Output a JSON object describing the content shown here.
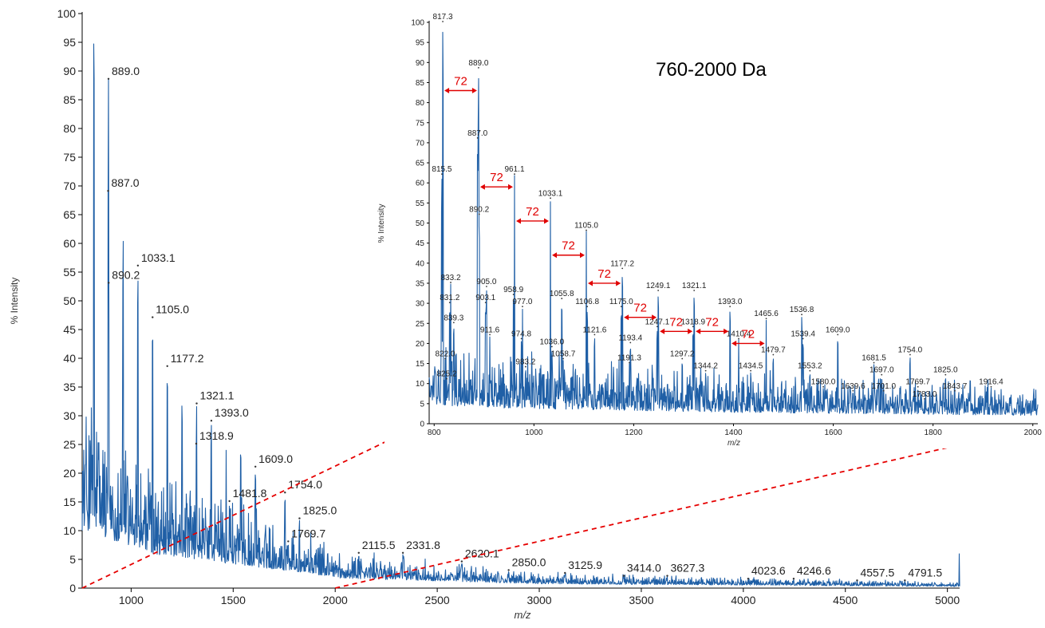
{
  "chart_data": [
    {
      "type": "line",
      "xlabel": "m/z",
      "ylabel": "% Intensity",
      "xlim": [
        760,
        5060
      ],
      "ylim": [
        0,
        100
      ],
      "xticks": [
        1000,
        1500,
        2000,
        2500,
        3000,
        3500,
        4000,
        4500,
        5000
      ],
      "yticks": [
        0,
        5,
        10,
        15,
        20,
        25,
        30,
        35,
        40,
        45,
        50,
        55,
        60,
        65,
        70,
        75,
        80,
        85,
        90,
        95,
        100
      ],
      "color": "#1f5fa6",
      "labeled_peaks": [
        {
          "x": 817.3,
          "y": 100,
          "label": ""
        },
        {
          "x": 889.0,
          "y": 88.5,
          "label": "889.0"
        },
        {
          "x": 887.0,
          "y": 69,
          "label": "887.0"
        },
        {
          "x": 961.1,
          "y": 61.5,
          "label": ""
        },
        {
          "x": 1033.1,
          "y": 56,
          "label": "1033.1"
        },
        {
          "x": 890.2,
          "y": 53,
          "label": "890.2"
        },
        {
          "x": 1105.0,
          "y": 47,
          "label": "1105.0"
        },
        {
          "x": 1177.2,
          "y": 38.5,
          "label": "1177.2"
        },
        {
          "x": 1249.1,
          "y": 33,
          "label": ""
        },
        {
          "x": 1321.1,
          "y": 32,
          "label": "1321.1"
        },
        {
          "x": 1393.0,
          "y": 29,
          "label": "1393.0"
        },
        {
          "x": 1318.9,
          "y": 25,
          "label": "1318.9"
        },
        {
          "x": 1465.6,
          "y": 24,
          "label": ""
        },
        {
          "x": 1536.8,
          "y": 25,
          "label": ""
        },
        {
          "x": 1609.0,
          "y": 21,
          "label": "1609.0"
        },
        {
          "x": 1481.8,
          "y": 15,
          "label": "1481.8"
        },
        {
          "x": 1754.0,
          "y": 16.5,
          "label": "1754.0"
        },
        {
          "x": 1825.0,
          "y": 12,
          "label": "1825.0"
        },
        {
          "x": 1769.7,
          "y": 8,
          "label": "1769.7"
        },
        {
          "x": 2115.5,
          "y": 6,
          "label": "2115.5"
        },
        {
          "x": 2331.8,
          "y": 6,
          "label": "2331.8"
        },
        {
          "x": 2620.1,
          "y": 4.5,
          "label": "2620.1"
        },
        {
          "x": 2850.0,
          "y": 3,
          "label": "2850.0"
        },
        {
          "x": 3125.9,
          "y": 2.5,
          "label": "3125.9"
        },
        {
          "x": 3414.0,
          "y": 2,
          "label": "3414.0"
        },
        {
          "x": 3627.3,
          "y": 2,
          "label": "3627.3"
        },
        {
          "x": 4023.6,
          "y": 1.5,
          "label": "4023.6"
        },
        {
          "x": 4246.6,
          "y": 1.5,
          "label": "4246.6"
        },
        {
          "x": 4557.5,
          "y": 1.2,
          "label": "4557.5"
        },
        {
          "x": 4791.5,
          "y": 1.2,
          "label": "4791.5"
        },
        {
          "x": 5058,
          "y": 6,
          "label": ""
        }
      ]
    },
    {
      "type": "line",
      "title": "760-2000 Da",
      "xlabel": "m/z",
      "ylabel": "% Intensity",
      "xlim": [
        790,
        2010
      ],
      "ylim": [
        0,
        100
      ],
      "xticks": [
        800,
        1000,
        1200,
        1400,
        1600,
        1800,
        2000
      ],
      "yticks": [
        0,
        5,
        10,
        15,
        20,
        25,
        30,
        35,
        40,
        45,
        50,
        55,
        60,
        65,
        70,
        75,
        80,
        85,
        90,
        95,
        100
      ],
      "color": "#1f5fa6",
      "labeled_peaks": [
        {
          "x": 817.3,
          "y": 100,
          "label": "817.3"
        },
        {
          "x": 815.5,
          "y": 62,
          "label": "815.5"
        },
        {
          "x": 822.0,
          "y": 16,
          "label": "822.0"
        },
        {
          "x": 825.2,
          "y": 11,
          "label": "825.2"
        },
        {
          "x": 833.2,
          "y": 35,
          "label": "833.2"
        },
        {
          "x": 831.2,
          "y": 30,
          "label": "831.2"
        },
        {
          "x": 839.3,
          "y": 25,
          "label": "839.3"
        },
        {
          "x": 889.0,
          "y": 88.5,
          "label": "889.0"
        },
        {
          "x": 887.0,
          "y": 71,
          "label": "887.0"
        },
        {
          "x": 890.2,
          "y": 52,
          "label": "890.2"
        },
        {
          "x": 905.0,
          "y": 34,
          "label": "905.0"
        },
        {
          "x": 903.1,
          "y": 30,
          "label": "903.1"
        },
        {
          "x": 911.6,
          "y": 22,
          "label": "911.6"
        },
        {
          "x": 961.1,
          "y": 62,
          "label": "961.1"
        },
        {
          "x": 958.9,
          "y": 32,
          "label": "958.9"
        },
        {
          "x": 977.0,
          "y": 29,
          "label": "977.0"
        },
        {
          "x": 974.8,
          "y": 21,
          "label": "974.8"
        },
        {
          "x": 983.2,
          "y": 14,
          "label": "983.2"
        },
        {
          "x": 1033.1,
          "y": 56,
          "label": "1033.1"
        },
        {
          "x": 1036.0,
          "y": 19,
          "label": "1036.0"
        },
        {
          "x": 1058.7,
          "y": 16,
          "label": "1058.7"
        },
        {
          "x": 1055.8,
          "y": 31,
          "label": "1055.8"
        },
        {
          "x": 1105.0,
          "y": 48,
          "label": "1105.0"
        },
        {
          "x": 1106.8,
          "y": 29,
          "label": "1106.8"
        },
        {
          "x": 1121.6,
          "y": 22,
          "label": "1121.6"
        },
        {
          "x": 1177.2,
          "y": 38.5,
          "label": "1177.2"
        },
        {
          "x": 1175.0,
          "y": 29,
          "label": "1175.0"
        },
        {
          "x": 1193.4,
          "y": 20,
          "label": "1193.4"
        },
        {
          "x": 1191.3,
          "y": 15,
          "label": "1191.3"
        },
        {
          "x": 1249.1,
          "y": 33,
          "label": "1249.1"
        },
        {
          "x": 1247.1,
          "y": 24,
          "label": "1247.1"
        },
        {
          "x": 1297.2,
          "y": 16,
          "label": "1297.2"
        },
        {
          "x": 1321.1,
          "y": 33,
          "label": "1321.1"
        },
        {
          "x": 1318.9,
          "y": 24,
          "label": "1318.9"
        },
        {
          "x": 1344.2,
          "y": 13,
          "label": "1344.2"
        },
        {
          "x": 1393.0,
          "y": 29,
          "label": "1393.0"
        },
        {
          "x": 1410.4,
          "y": 21,
          "label": "1410.4"
        },
        {
          "x": 1434.5,
          "y": 13,
          "label": "1434.5"
        },
        {
          "x": 1465.6,
          "y": 26,
          "label": "1465.6"
        },
        {
          "x": 1479.7,
          "y": 17,
          "label": "1479.7"
        },
        {
          "x": 1536.8,
          "y": 27,
          "label": "1536.8"
        },
        {
          "x": 1539.4,
          "y": 21,
          "label": "1539.4"
        },
        {
          "x": 1553.2,
          "y": 13,
          "label": "1553.2"
        },
        {
          "x": 1580.0,
          "y": 9,
          "label": "1580.0"
        },
        {
          "x": 1609.0,
          "y": 22,
          "label": "1609.0"
        },
        {
          "x": 1639.6,
          "y": 8,
          "label": "1639.6"
        },
        {
          "x": 1681.5,
          "y": 15,
          "label": "1681.5"
        },
        {
          "x": 1697.0,
          "y": 12,
          "label": "1697.0"
        },
        {
          "x": 1701.0,
          "y": 8,
          "label": "1701.0"
        },
        {
          "x": 1754.0,
          "y": 17,
          "label": "1754.0"
        },
        {
          "x": 1769.7,
          "y": 9,
          "label": "1769.7"
        },
        {
          "x": 1783.0,
          "y": 6,
          "label": "1783.0"
        },
        {
          "x": 1825.0,
          "y": 12,
          "label": "1825.0"
        },
        {
          "x": 1843.7,
          "y": 8,
          "label": "1843.7"
        },
        {
          "x": 1916.4,
          "y": 9,
          "label": "1916.4"
        }
      ],
      "annotations": [
        {
          "text": "72",
          "from": 817.3,
          "to": 889.0,
          "y": 83
        },
        {
          "text": "72",
          "from": 889.0,
          "to": 961.1,
          "y": 59
        },
        {
          "text": "72",
          "from": 961.1,
          "to": 1033.1,
          "y": 50.5
        },
        {
          "text": "72",
          "from": 1033.1,
          "to": 1105.0,
          "y": 42
        },
        {
          "text": "72",
          "from": 1105.0,
          "to": 1177.2,
          "y": 35
        },
        {
          "text": "72",
          "from": 1177.2,
          "to": 1249.1,
          "y": 26.5
        },
        {
          "text": "72",
          "from": 1249.1,
          "to": 1321.1,
          "y": 23
        },
        {
          "text": "72",
          "from": 1321.1,
          "to": 1393.0,
          "y": 23
        },
        {
          "text": "72",
          "from": 1393.0,
          "to": 1465.6,
          "y": 20
        }
      ]
    }
  ]
}
